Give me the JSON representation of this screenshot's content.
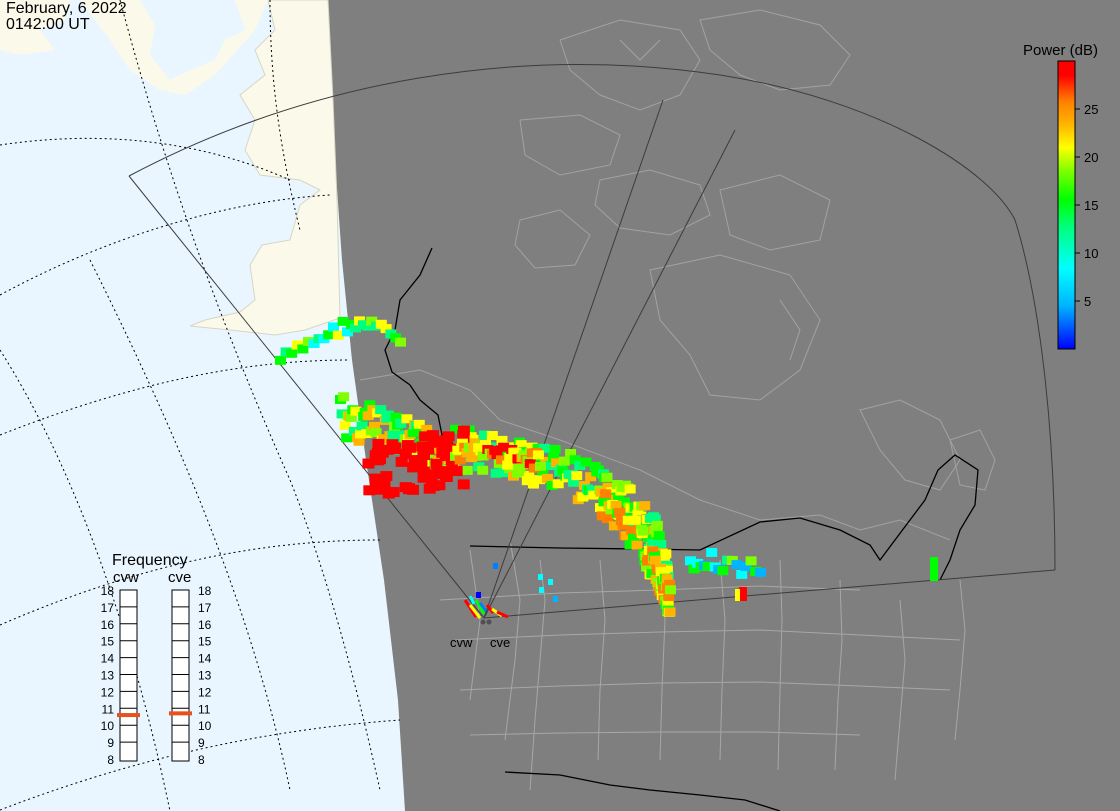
{
  "header": {
    "date": "February, 6 2022",
    "time": "0142:00 UT"
  },
  "colorbar": {
    "title": "Power (dB)",
    "ticks": [
      {
        "label": "25",
        "value": 25
      },
      {
        "label": "20",
        "value": 20
      },
      {
        "label": "15",
        "value": 15
      },
      {
        "label": "10",
        "value": 10
      },
      {
        "label": "5",
        "value": 5
      }
    ],
    "range": [
      0,
      30
    ],
    "colors": [
      "#0000ff",
      "#00b4ff",
      "#00ffff",
      "#00ff80",
      "#00ff00",
      "#80ff00",
      "#ffff00",
      "#ffb400",
      "#ff8000",
      "#ff0000"
    ]
  },
  "frequency": {
    "title": "Frequency",
    "units_hint": "MHz",
    "scale_labels": [
      "18",
      "17",
      "16",
      "15",
      "14",
      "13",
      "12",
      "11",
      "10",
      "9",
      "8"
    ],
    "radars": [
      {
        "name": "cvw",
        "value": 10.6
      },
      {
        "name": "cve",
        "value": 10.7
      }
    ]
  },
  "sites": [
    {
      "name": "cvw"
    },
    {
      "name": "cve"
    }
  ],
  "colors": {
    "night": "#7f7f7f",
    "ocean_day": "#e9f6ff",
    "land_day": "#fbfaea",
    "border": "#000000",
    "state_lines": "#a7a7a7"
  }
}
